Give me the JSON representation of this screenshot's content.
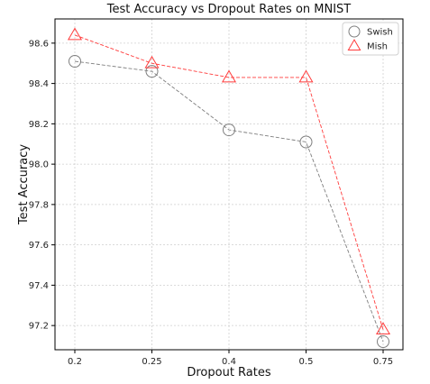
{
  "chart_data": {
    "type": "line",
    "title": "Test Accuracy vs Dropout Rates on MNIST",
    "xlabel": "Dropout Rates",
    "ylabel": "Test Accuracy",
    "categories": [
      "0.2",
      "0.25",
      "0.4",
      "0.5",
      "0.75"
    ],
    "yticks": [
      "97.2",
      "97.4",
      "97.6",
      "97.8",
      "98.0",
      "98.2",
      "98.4",
      "98.6"
    ],
    "ylim": [
      97.08,
      98.72
    ],
    "grid": true,
    "legend_position": "top-right",
    "series": [
      {
        "name": "Swish",
        "marker": "circle",
        "color": "#7f7f7f",
        "line_style": "dashed",
        "values": [
          98.51,
          98.46,
          98.17,
          98.11,
          97.12
        ]
      },
      {
        "name": "Mish",
        "marker": "triangle",
        "color": "#ff3b3b",
        "line_style": "dashed",
        "values": [
          98.64,
          98.5,
          98.43,
          98.43,
          97.18
        ]
      }
    ]
  }
}
